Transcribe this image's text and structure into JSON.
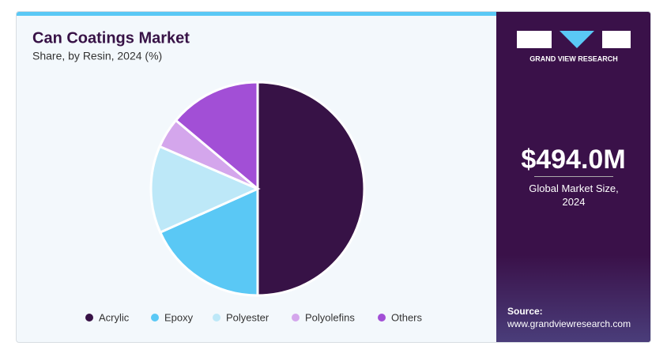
{
  "chart_data": {
    "type": "pie",
    "title": "Can Coatings Market",
    "subtitle": "Share, by Resin, 2024 (%)",
    "categories": [
      "Acrylic",
      "Epoxy",
      "Polyester",
      "Polyolefins",
      "Others"
    ],
    "values": [
      50,
      18.3,
      13.2,
      4.6,
      13.9
    ],
    "colors": [
      "#371246",
      "#5ac8f5",
      "#bde8f8",
      "#d4a6ec",
      "#a24fd6"
    ],
    "legend": "bottom"
  },
  "sidebar": {
    "logo": "GRAND VIEW RESEARCH",
    "market_size": "$494.0M",
    "market_size_label": "Global Market Size, 2024",
    "source_label": "Source:",
    "source_url": "www.grandviewresearch.com"
  }
}
